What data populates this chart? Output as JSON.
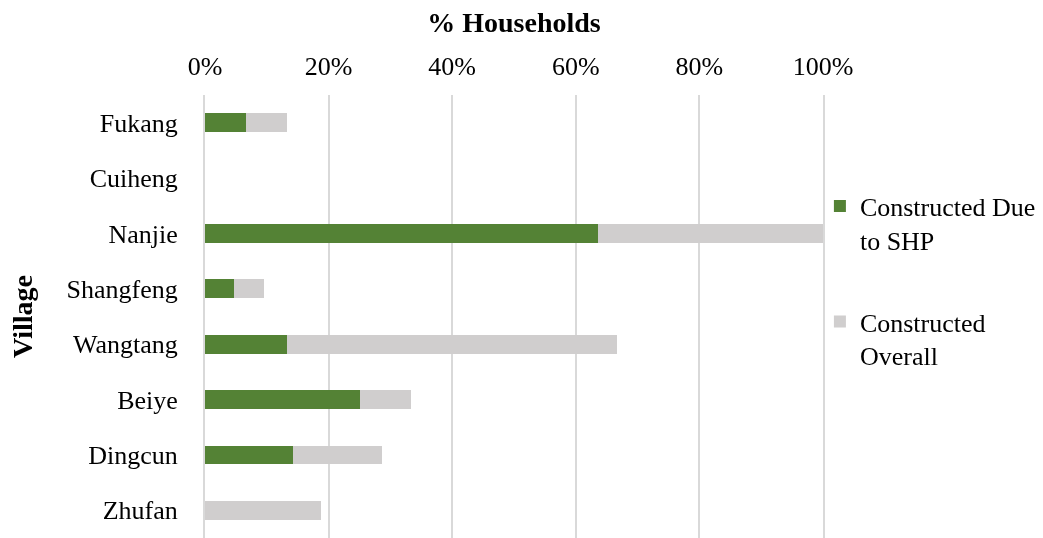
{
  "chart_data": {
    "type": "bar",
    "orientation": "horizontal",
    "stacked": true,
    "xlabel": "% Households",
    "ylabel": "Village",
    "categories": [
      "Fukang",
      "Cuiheng",
      "Nanjie",
      "Shangfeng",
      "Wangtang",
      "Beiye",
      "Dingcun",
      "Zhufan"
    ],
    "series": [
      {
        "name": "Constructed Due to SHP",
        "color": "#548235",
        "values": [
          6.7,
          0,
          63.6,
          4.7,
          13.3,
          25,
          14.3,
          0
        ]
      },
      {
        "name": "Constructed Overall",
        "color": "#d0cece",
        "values": [
          6.6,
          0,
          36.4,
          4.8,
          53.4,
          8.3,
          14.3,
          18.8
        ]
      }
    ],
    "xlim": [
      0,
      100
    ],
    "xticks": [
      {
        "value": 0,
        "label": "0%"
      },
      {
        "value": 20,
        "label": "20%"
      },
      {
        "value": 40,
        "label": "40%"
      },
      {
        "value": 60,
        "label": "60%"
      },
      {
        "value": 80,
        "label": "80%"
      },
      {
        "value": 100,
        "label": "100%"
      }
    ],
    "grid": "x",
    "legend": "right"
  }
}
